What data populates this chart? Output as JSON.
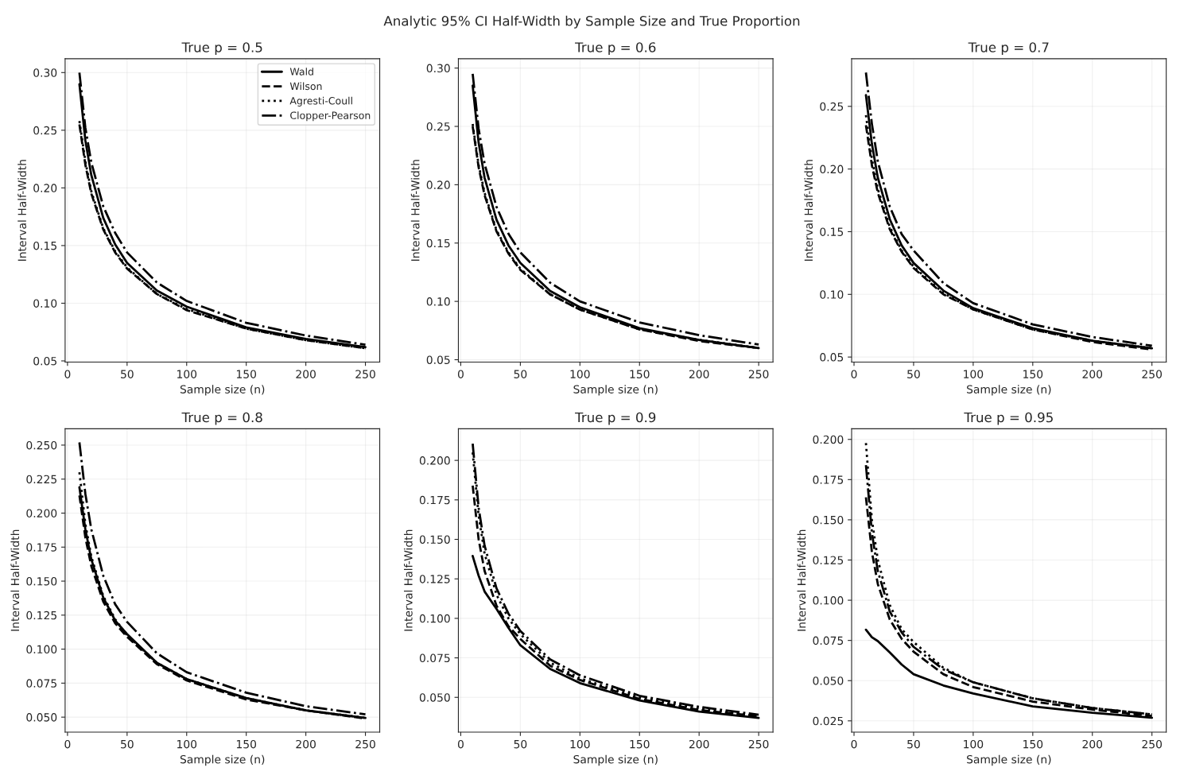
{
  "chart_data": [
    {
      "type": "line",
      "title": "True p = 0.5",
      "xlabel": "Sample size (n)",
      "ylabel": "Interval Half-Width",
      "annotations": [
        "Analytic 95% CI Half-Width by Sample Size and True Proportion"
      ],
      "x": [
        10,
        15,
        20,
        30,
        40,
        50,
        75,
        100,
        150,
        200,
        250
      ],
      "series": [
        {
          "name": "Wald",
          "color": "#000000",
          "line_style": "solid",
          "values": [
            0.29,
            0.241,
            0.211,
            0.174,
            0.151,
            0.135,
            0.111,
            0.097,
            0.079,
            0.069,
            0.062
          ]
        },
        {
          "name": "Wilson",
          "color": "#000000",
          "line_style": "dashed",
          "values": [
            0.255,
            0.22,
            0.195,
            0.164,
            0.144,
            0.13,
            0.108,
            0.094,
            0.078,
            0.068,
            0.061
          ]
        },
        {
          "name": "Agresti-Coull",
          "color": "#000000",
          "line_style": "dotted",
          "values": [
            0.258,
            0.223,
            0.197,
            0.165,
            0.145,
            0.131,
            0.108,
            0.095,
            0.078,
            0.068,
            0.061
          ]
        },
        {
          "name": "Clopper-Pearson",
          "color": "#000000",
          "line_style": "dashdot",
          "values": [
            0.3,
            0.252,
            0.222,
            0.184,
            0.161,
            0.144,
            0.118,
            0.102,
            0.083,
            0.072,
            0.064
          ]
        }
      ],
      "xlim": [
        -2,
        262
      ],
      "ylim": [
        0.049,
        0.312
      ],
      "xticks": [
        0,
        50,
        100,
        150,
        200,
        250
      ],
      "yticks": [
        {
          "value": 0.05,
          "label": "0.05"
        },
        {
          "value": 0.1,
          "label": "0.10"
        },
        {
          "value": 0.15,
          "label": "0.15"
        },
        {
          "value": 0.2,
          "label": "0.20"
        },
        {
          "value": 0.25,
          "label": "0.25"
        },
        {
          "value": 0.3,
          "label": "0.30"
        }
      ],
      "grid": true,
      "legend": "top right"
    },
    {
      "type": "line",
      "title": "True p = 0.6",
      "xlabel": "Sample size (n)",
      "ylabel": "Interval Half-Width",
      "x": [
        10,
        15,
        20,
        30,
        40,
        50,
        75,
        100,
        150,
        200,
        250
      ],
      "series": [
        {
          "color": "#000000",
          "line_style": "solid",
          "values": [
            0.285,
            0.236,
            0.206,
            0.17,
            0.148,
            0.133,
            0.109,
            0.095,
            0.077,
            0.067,
            0.06
          ]
        },
        {
          "color": "#000000",
          "line_style": "dashed",
          "values": [
            0.25,
            0.215,
            0.191,
            0.16,
            0.141,
            0.127,
            0.106,
            0.093,
            0.076,
            0.066,
            0.06
          ]
        },
        {
          "color": "#000000",
          "line_style": "dotted",
          "values": [
            0.252,
            0.217,
            0.193,
            0.161,
            0.142,
            0.128,
            0.106,
            0.093,
            0.076,
            0.067,
            0.06
          ]
        },
        {
          "color": "#000000",
          "line_style": "dashdot",
          "values": [
            0.295,
            0.248,
            0.218,
            0.181,
            0.158,
            0.142,
            0.116,
            0.1,
            0.082,
            0.071,
            0.063
          ]
        }
      ],
      "xlim": [
        -2,
        262
      ],
      "ylim": [
        0.048,
        0.308
      ],
      "xticks": [
        0,
        50,
        100,
        150,
        200,
        250
      ],
      "yticks": [
        {
          "value": 0.05,
          "label": "0.05"
        },
        {
          "value": 0.1,
          "label": "0.10"
        },
        {
          "value": 0.15,
          "label": "0.15"
        },
        {
          "value": 0.2,
          "label": "0.20"
        },
        {
          "value": 0.25,
          "label": "0.25"
        },
        {
          "value": 0.3,
          "label": "0.30"
        }
      ],
      "grid": true
    },
    {
      "type": "line",
      "title": "True p = 0.7",
      "xlabel": "Sample size (n)",
      "ylabel": "Interval Half-Width",
      "x": [
        10,
        15,
        20,
        30,
        40,
        50,
        75,
        100,
        150,
        200,
        250
      ],
      "series": [
        {
          "color": "#000000",
          "line_style": "solid",
          "values": [
            0.259,
            0.22,
            0.193,
            0.16,
            0.139,
            0.125,
            0.103,
            0.089,
            0.073,
            0.063,
            0.057
          ]
        },
        {
          "color": "#000000",
          "line_style": "dashed",
          "values": [
            0.235,
            0.203,
            0.181,
            0.152,
            0.134,
            0.121,
            0.1,
            0.088,
            0.072,
            0.062,
            0.056
          ]
        },
        {
          "color": "#000000",
          "line_style": "dotted",
          "values": [
            0.243,
            0.208,
            0.184,
            0.154,
            0.135,
            0.122,
            0.101,
            0.088,
            0.072,
            0.063,
            0.057
          ]
        },
        {
          "color": "#000000",
          "line_style": "dashdot",
          "values": [
            0.277,
            0.236,
            0.206,
            0.17,
            0.148,
            0.135,
            0.109,
            0.093,
            0.076,
            0.066,
            0.059
          ]
        }
      ],
      "xlim": [
        -2,
        262
      ],
      "ylim": [
        0.046,
        0.288
      ],
      "xticks": [
        0,
        50,
        100,
        150,
        200,
        250
      ],
      "yticks": [
        {
          "value": 0.05,
          "label": "0.05"
        },
        {
          "value": 0.1,
          "label": "0.10"
        },
        {
          "value": 0.15,
          "label": "0.15"
        },
        {
          "value": 0.2,
          "label": "0.20"
        },
        {
          "value": 0.25,
          "label": "0.25"
        }
      ],
      "grid": true
    },
    {
      "type": "line",
      "title": "True p = 0.8",
      "xlabel": "Sample size (n)",
      "ylabel": "Interval Half-Width",
      "x": [
        10,
        15,
        20,
        30,
        40,
        50,
        75,
        100,
        150,
        200,
        250
      ],
      "series": [
        {
          "color": "#000000",
          "line_style": "solid",
          "values": [
            0.219,
            0.188,
            0.166,
            0.138,
            0.121,
            0.111,
            0.09,
            0.078,
            0.064,
            0.055,
            0.0495
          ]
        },
        {
          "color": "#000000",
          "line_style": "dashed",
          "values": [
            0.213,
            0.182,
            0.161,
            0.135,
            0.119,
            0.109,
            0.089,
            0.077,
            0.063,
            0.055,
            0.049
          ]
        },
        {
          "color": "#000000",
          "line_style": "dotted",
          "values": [
            0.23,
            0.192,
            0.168,
            0.139,
            0.122,
            0.11,
            0.09,
            0.078,
            0.064,
            0.055,
            0.0495
          ]
        },
        {
          "color": "#000000",
          "line_style": "dashdot",
          "values": [
            0.252,
            0.214,
            0.188,
            0.154,
            0.133,
            0.12,
            0.097,
            0.083,
            0.068,
            0.058,
            0.052
          ]
        }
      ],
      "xlim": [
        -2,
        262
      ],
      "ylim": [
        0.039,
        0.262
      ],
      "xticks": [
        0,
        50,
        100,
        150,
        200,
        250
      ],
      "yticks": [
        {
          "value": 0.05,
          "label": "0.050"
        },
        {
          "value": 0.075,
          "label": "0.075"
        },
        {
          "value": 0.1,
          "label": "0.100"
        },
        {
          "value": 0.125,
          "label": "0.125"
        },
        {
          "value": 0.15,
          "label": "0.150"
        },
        {
          "value": 0.175,
          "label": "0.175"
        },
        {
          "value": 0.2,
          "label": "0.200"
        },
        {
          "value": 0.225,
          "label": "0.225"
        },
        {
          "value": 0.25,
          "label": "0.250"
        }
      ],
      "grid": true
    },
    {
      "type": "line",
      "title": "True p = 0.9",
      "xlabel": "Sample size (n)",
      "ylabel": "Interval Half-Width",
      "x": [
        10,
        15,
        20,
        30,
        40,
        50,
        75,
        100,
        150,
        200,
        250
      ],
      "series": [
        {
          "color": "#000000",
          "line_style": "solid",
          "values": [
            0.1395,
            0.127,
            0.117,
            0.106,
            0.094,
            0.083,
            0.068,
            0.059,
            0.048,
            0.041,
            0.037
          ]
        },
        {
          "color": "#000000",
          "line_style": "dashed",
          "values": [
            0.184,
            0.15,
            0.13,
            0.108,
            0.095,
            0.087,
            0.07,
            0.061,
            0.049,
            0.042,
            0.038
          ]
        },
        {
          "color": "#000000",
          "line_style": "dotted",
          "values": [
            0.205,
            0.165,
            0.141,
            0.115,
            0.1,
            0.09,
            0.072,
            0.062,
            0.05,
            0.043,
            0.038
          ]
        },
        {
          "color": "#000000",
          "line_style": "dashdot",
          "values": [
            0.2106,
            0.17,
            0.146,
            0.119,
            0.103,
            0.092,
            0.074,
            0.064,
            0.051,
            0.044,
            0.039
          ]
        }
      ],
      "xlim": [
        -2,
        262
      ],
      "ylim": [
        0.028,
        0.22
      ],
      "xticks": [
        0,
        50,
        100,
        150,
        200,
        250
      ],
      "yticks": [
        {
          "value": 0.05,
          "label": "0.050"
        },
        {
          "value": 0.075,
          "label": "0.075"
        },
        {
          "value": 0.1,
          "label": "0.100"
        },
        {
          "value": 0.125,
          "label": "0.125"
        },
        {
          "value": 0.15,
          "label": "0.150"
        },
        {
          "value": 0.175,
          "label": "0.175"
        },
        {
          "value": 0.2,
          "label": "0.200"
        }
      ],
      "grid": true
    },
    {
      "type": "line",
      "title": "True p = 0.95",
      "xlabel": "Sample size (n)",
      "ylabel": "Interval Half-Width",
      "x": [
        10,
        15,
        20,
        30,
        40,
        50,
        75,
        100,
        150,
        200,
        250
      ],
      "series": [
        {
          "color": "#000000",
          "line_style": "solid",
          "values": [
            0.0817,
            0.077,
            0.0746,
            0.0675,
            0.06,
            0.054,
            0.047,
            0.042,
            0.034,
            0.03,
            0.027
          ]
        },
        {
          "color": "#000000",
          "line_style": "dashed",
          "values": [
            0.164,
            0.13,
            0.11,
            0.088,
            0.076,
            0.068,
            0.054,
            0.046,
            0.037,
            0.032,
            0.028
          ]
        },
        {
          "color": "#000000",
          "line_style": "dotted",
          "values": [
            0.1977,
            0.15,
            0.125,
            0.097,
            0.082,
            0.074,
            0.058,
            0.049,
            0.039,
            0.033,
            0.029
          ]
        },
        {
          "color": "#000000",
          "line_style": "dashdot",
          "values": [
            0.184,
            0.142,
            0.118,
            0.093,
            0.08,
            0.071,
            0.057,
            0.049,
            0.039,
            0.033,
            0.029
          ]
        }
      ],
      "xlim": [
        -2,
        262
      ],
      "ylim": [
        0.018,
        0.2066
      ],
      "xticks": [
        0,
        50,
        100,
        150,
        200,
        250
      ],
      "yticks": [
        {
          "value": 0.025,
          "label": "0.025"
        },
        {
          "value": 0.05,
          "label": "0.050"
        },
        {
          "value": 0.075,
          "label": "0.075"
        },
        {
          "value": 0.1,
          "label": "0.100"
        },
        {
          "value": 0.125,
          "label": "0.125"
        },
        {
          "value": 0.15,
          "label": "0.150"
        },
        {
          "value": 0.175,
          "label": "0.175"
        },
        {
          "value": 0.2,
          "label": "0.200"
        }
      ],
      "grid": true
    }
  ]
}
